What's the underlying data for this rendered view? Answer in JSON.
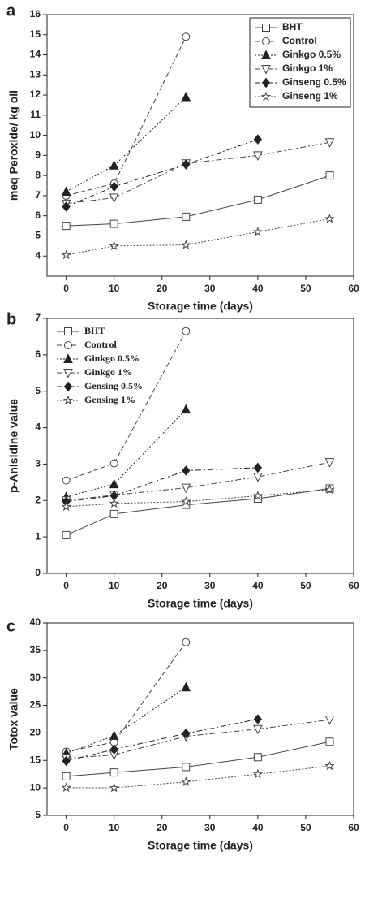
{
  "chart_data": [
    {
      "type": "line",
      "panel": "a",
      "x_label": "Storage time (days)",
      "y_label": "meq Peroxide/ kg oil",
      "x": [
        0,
        10,
        25,
        40,
        55
      ],
      "xlim": [
        -4,
        60
      ],
      "xticks": [
        0,
        10,
        20,
        30,
        40,
        50,
        60
      ],
      "ylim": [
        3,
        16
      ],
      "yticks": [
        4,
        5,
        6,
        7,
        8,
        9,
        10,
        11,
        12,
        13,
        14,
        15,
        16
      ],
      "legend": "upper right",
      "legend_box": true,
      "series": [
        {
          "name": "BHT",
          "color": "#444",
          "dash": "solid",
          "marker": "square",
          "filled": false,
          "values": [
            5.5,
            5.6,
            5.95,
            6.8,
            8.0
          ]
        },
        {
          "name": "Control",
          "color": "#444",
          "dash": "dashed",
          "marker": "circle",
          "filled": false,
          "values": [
            7.0,
            7.6,
            14.9,
            null,
            null
          ]
        },
        {
          "name": "Ginkgo 0.5%",
          "color": "#222",
          "dash": "dotted",
          "marker": "triangle-up",
          "filled": true,
          "values": [
            7.2,
            8.5,
            11.9,
            null,
            null
          ]
        },
        {
          "name": "Ginkgo 1%",
          "color": "#444",
          "dash": "dashdot",
          "marker": "triangle-down",
          "filled": false,
          "values": [
            6.6,
            6.9,
            8.6,
            9.0,
            9.65
          ]
        },
        {
          "name": "Ginseng 0.5%",
          "color": "#222",
          "dash": "dashdot",
          "marker": "diamond",
          "filled": true,
          "values": [
            6.45,
            7.45,
            8.55,
            9.8,
            null
          ]
        },
        {
          "name": "Ginseng 1%",
          "color": "#444",
          "dash": "dotted",
          "marker": "star",
          "filled": false,
          "values": [
            4.05,
            4.5,
            4.55,
            5.2,
            5.85
          ]
        }
      ]
    },
    {
      "type": "line",
      "panel": "b",
      "x_label": "Storage time (days)",
      "y_label": "p-Anisidine value",
      "x": [
        0,
        10,
        25,
        40,
        55
      ],
      "xlim": [
        -4,
        60
      ],
      "xticks": [
        0,
        10,
        20,
        30,
        40,
        50,
        60
      ],
      "ylim": [
        0,
        7
      ],
      "yticks": [
        0,
        1,
        2,
        3,
        4,
        5,
        6,
        7
      ],
      "legend": "upper left",
      "legend_box": false,
      "series": [
        {
          "name": "BHT",
          "color": "#444",
          "dash": "solid",
          "marker": "square",
          "filled": false,
          "values": [
            1.05,
            1.63,
            1.88,
            2.05,
            2.33
          ]
        },
        {
          "name": "Control",
          "color": "#444",
          "dash": "dashed",
          "marker": "circle",
          "filled": false,
          "values": [
            2.55,
            3.02,
            6.65,
            null,
            null
          ]
        },
        {
          "name": "Ginkgo 0.5%",
          "color": "#222",
          "dash": "dotted",
          "marker": "triangle-up",
          "filled": true,
          "values": [
            2.1,
            2.45,
            4.5,
            null,
            null
          ]
        },
        {
          "name": "Ginkgo 1%",
          "color": "#444",
          "dash": "dashdot",
          "marker": "triangle-down",
          "filled": false,
          "values": [
            2.0,
            2.15,
            2.35,
            2.65,
            3.05
          ]
        },
        {
          "name": "Gensing 0.5%",
          "color": "#222",
          "dash": "dashdot",
          "marker": "diamond",
          "filled": true,
          "values": [
            1.97,
            2.13,
            2.82,
            2.9,
            null
          ]
        },
        {
          "name": "Gensing 1%",
          "color": "#444",
          "dash": "dotted",
          "marker": "star",
          "filled": false,
          "values": [
            1.83,
            1.92,
            1.97,
            2.13,
            2.3
          ]
        }
      ]
    },
    {
      "type": "line",
      "panel": "c",
      "x_label": "Storage time (days)",
      "y_label": "Totox value",
      "x": [
        0,
        10,
        25,
        40,
        55
      ],
      "xlim": [
        -4,
        60
      ],
      "xticks": [
        0,
        10,
        20,
        30,
        40,
        50,
        60
      ],
      "ylim": [
        5,
        40
      ],
      "yticks": [
        5,
        10,
        15,
        20,
        25,
        30,
        35,
        40
      ],
      "series": [
        {
          "color": "#444",
          "dash": "solid",
          "marker": "square",
          "filled": false,
          "values": [
            12.1,
            12.8,
            13.8,
            15.6,
            18.4
          ]
        },
        {
          "color": "#444",
          "dash": "dashed",
          "marker": "circle",
          "filled": false,
          "values": [
            16.6,
            18.3,
            36.5,
            null,
            null
          ]
        },
        {
          "color": "#222",
          "dash": "dotted",
          "marker": "triangle-up",
          "filled": true,
          "values": [
            16.3,
            19.5,
            28.3,
            null,
            null
          ]
        },
        {
          "color": "#444",
          "dash": "dashdot",
          "marker": "triangle-down",
          "filled": false,
          "values": [
            15.4,
            16.0,
            19.4,
            20.7,
            22.4
          ]
        },
        {
          "color": "#222",
          "dash": "dashdot",
          "marker": "diamond",
          "filled": true,
          "values": [
            14.9,
            17.0,
            19.9,
            22.5,
            null
          ]
        },
        {
          "color": "#444",
          "dash": "dotted",
          "marker": "star",
          "filled": false,
          "values": [
            10.05,
            10.0,
            11.1,
            12.5,
            14.0
          ]
        }
      ]
    }
  ]
}
